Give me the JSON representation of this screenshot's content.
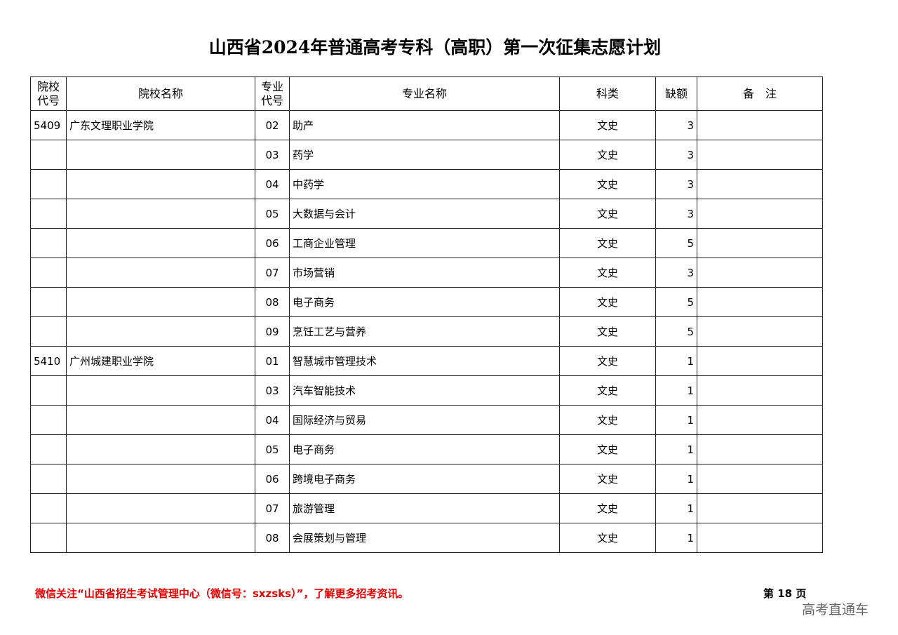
{
  "header": {
    "title": "山西省2024年普通高考专科（高职）第一次征集志愿计划"
  },
  "table": {
    "columns": [
      "院校代号",
      "院校名称",
      "专业代号",
      "专业名称",
      "科类",
      "缺额",
      "备　注"
    ],
    "rows": [
      [
        "5409",
        "广东文理职业学院",
        "02",
        "助产",
        "文史",
        3
      ],
      [
        null,
        null,
        "03",
        "药学",
        "文史",
        3
      ],
      [
        null,
        null,
        "04",
        "中药学",
        "文史",
        3
      ],
      [
        null,
        null,
        "05",
        "大数据与会计",
        "文史",
        3
      ],
      [
        null,
        null,
        "06",
        "工商企业管理",
        "文史",
        5
      ],
      [
        null,
        null,
        "07",
        "市场营销",
        "文史",
        3
      ],
      [
        null,
        null,
        "08",
        "电子商务",
        "文史",
        5
      ],
      [
        null,
        null,
        "09",
        "烹饪工艺与营养",
        "文史",
        5
      ],
      [
        "5410",
        "广州城建职业学院",
        "01",
        "智慧城市管理技术",
        "文史",
        1
      ],
      [
        null,
        null,
        "03",
        "汽车智能技术",
        "文史",
        1
      ],
      [
        null,
        null,
        "04",
        "国际经济与贸易",
        "文史",
        1
      ],
      [
        null,
        null,
        "05",
        "电子商务",
        "文史",
        1
      ],
      [
        null,
        null,
        "06",
        "跨境电子商务",
        "文史",
        1
      ],
      [
        null,
        null,
        "07",
        "旅游管理",
        "文史",
        1
      ],
      [
        null,
        null,
        "08",
        "会展策划与管理",
        "文史",
        1
      ]
    ]
  },
  "footer": {
    "notice": "微信关注“山西省招生考试管理中心（微信号：sxzsks）”，了解更多招考资讯。",
    "page": "第 18 页"
  },
  "watermark": "高考直通车"
}
